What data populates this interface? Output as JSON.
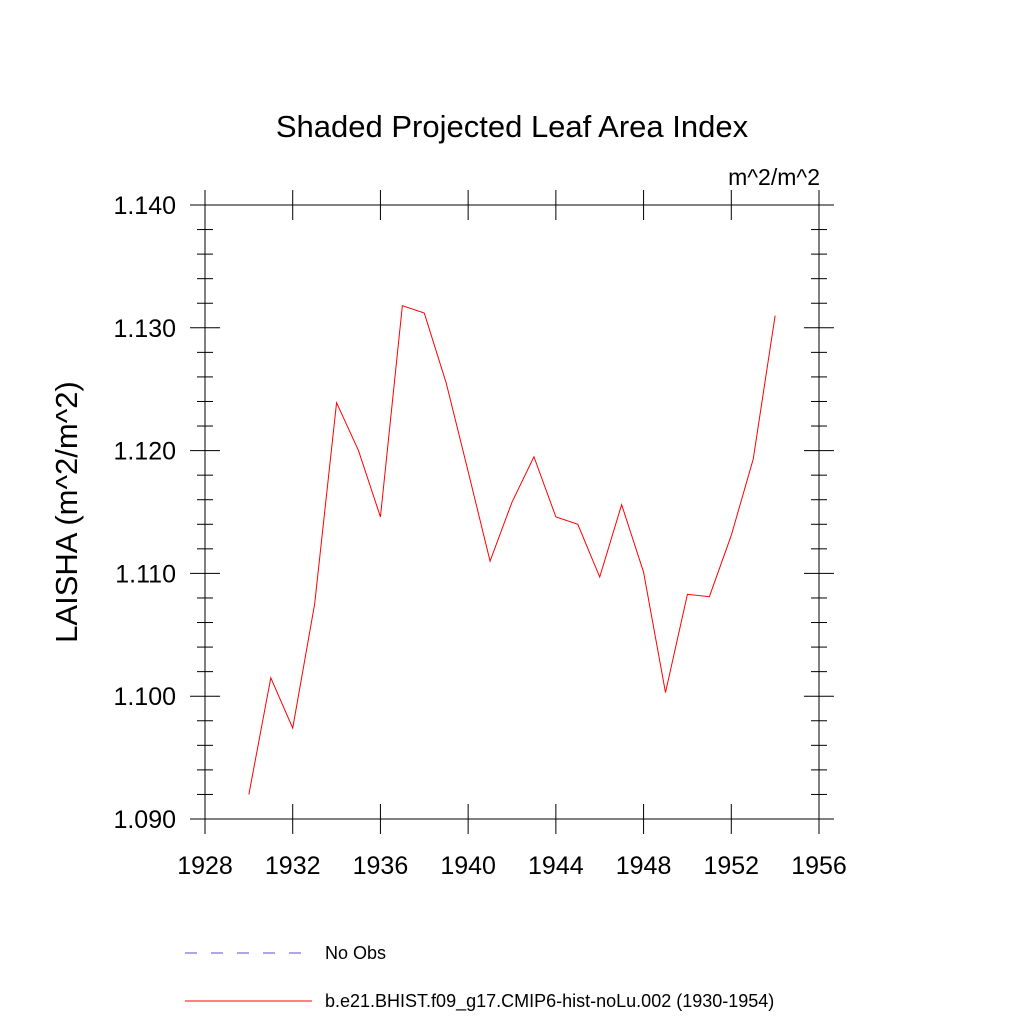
{
  "chart_data": {
    "type": "line",
    "title": "Shaded Projected Leaf Area Index",
    "units_label": "m^2/m^2",
    "ylabel": "LAISHA  (m^2/m^2)",
    "xlabel": "",
    "xlim": [
      1928,
      1956
    ],
    "ylim": [
      1.09,
      1.14
    ],
    "x_ticks": [
      "1928",
      "1932",
      "1936",
      "1940",
      "1944",
      "1948",
      "1952",
      "1956"
    ],
    "y_ticks": [
      "1.090",
      "1.100",
      "1.110",
      "1.120",
      "1.130",
      "1.140"
    ],
    "grid": false,
    "legend_position": "bottom",
    "series": [
      {
        "name": "b.e21.BHIST.f09_g17.CMIP6-hist-noLu.002 (1930-1954)",
        "color": "#ff0000",
        "style": "solid",
        "x": [
          1930,
          1931,
          1932,
          1933,
          1934,
          1935,
          1936,
          1937,
          1938,
          1939,
          1940,
          1941,
          1942,
          1943,
          1944,
          1945,
          1946,
          1947,
          1948,
          1949,
          1950,
          1951,
          1952,
          1953,
          1954
        ],
        "y": [
          1.092,
          1.1015,
          1.0974,
          1.1075,
          1.1239,
          1.12,
          1.1146,
          1.1318,
          1.1312,
          1.1255,
          1.1183,
          1.111,
          1.1158,
          1.1195,
          1.1146,
          1.114,
          1.1097,
          1.1156,
          1.1101,
          1.1003,
          1.1083,
          1.1081,
          1.1131,
          1.1193,
          1.131
        ]
      }
    ],
    "legend": [
      {
        "label": "No Obs",
        "color": "#5b4fd6",
        "style": "dashed"
      },
      {
        "label": "b.e21.BHIST.f09_g17.CMIP6-hist-noLu.002 (1930-1954)",
        "color": "#ff0000",
        "style": "solid"
      }
    ]
  }
}
